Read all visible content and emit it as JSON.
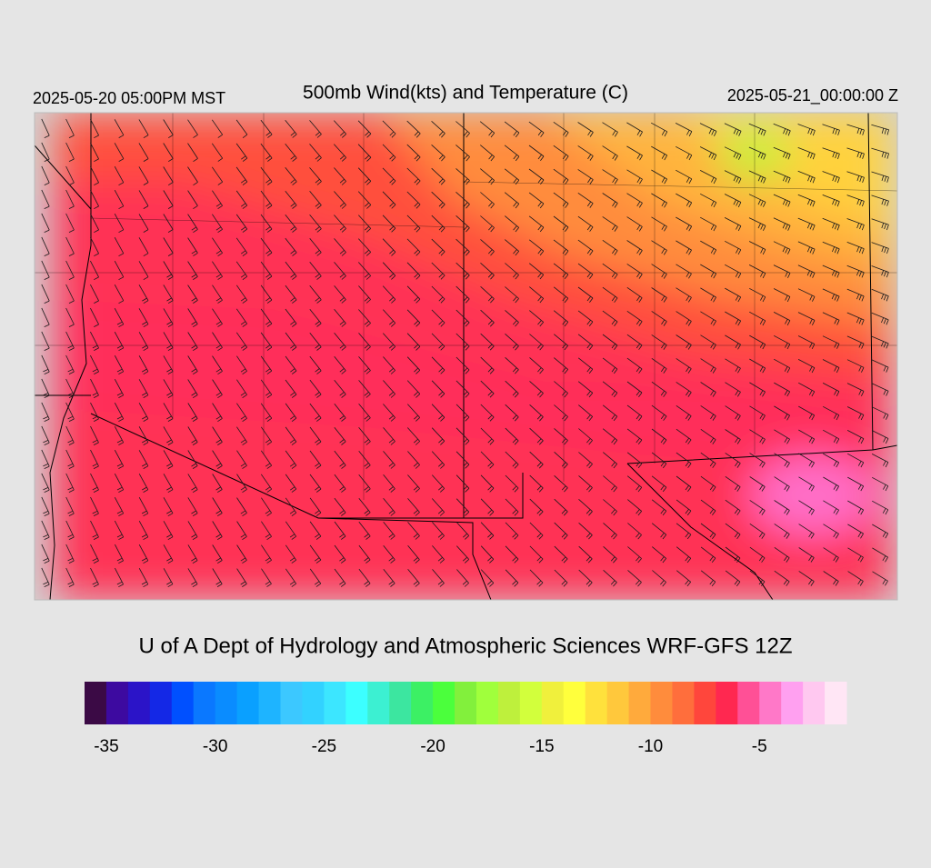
{
  "header": {
    "local_time": "2025-05-20 05:00PM MST",
    "title": "500mb Wind(kts) and Temperature (C)",
    "valid_time": "2025-05-21_00:00:00 Z"
  },
  "credit": "U of A Dept of Hydrology and Atmospheric Sciences WRF-GFS 12Z",
  "colorbar": {
    "range": [
      -36,
      -1
    ],
    "ticks": [
      -35,
      -30,
      -25,
      -20,
      -15,
      -10,
      -5
    ],
    "colors": [
      "#3b0a45",
      "#3d0aa0",
      "#2b14c8",
      "#1428e6",
      "#0050ff",
      "#0a78ff",
      "#0a8cff",
      "#0aa0ff",
      "#1eb4ff",
      "#3cc8ff",
      "#32d2ff",
      "#3ce6ff",
      "#3cffff",
      "#3cf0d2",
      "#3ce6a0",
      "#3cf064",
      "#4bff3c",
      "#82f03c",
      "#a0ff3c",
      "#bef03c",
      "#d2ff3c",
      "#f0f03c",
      "#ffff3c",
      "#ffe13c",
      "#ffc83c",
      "#ffaa3c",
      "#ff8c3c",
      "#ff6e3c",
      "#ff463c",
      "#ff2850",
      "#ff5096",
      "#ff78c8",
      "#ffa0f0",
      "#ffc8f0",
      "#ffe6f5"
    ]
  }
}
